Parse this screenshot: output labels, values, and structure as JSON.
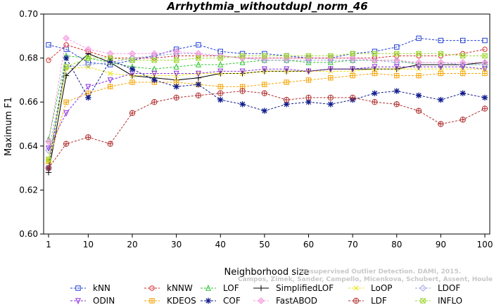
{
  "chart_data": {
    "type": "line",
    "title": "Arrhythmia_withoutdupl_norm_46",
    "xlabel": "Neighborhood size",
    "ylabel": "Maximum F1",
    "xlim": [
      1,
      100
    ],
    "ylim": [
      0.6,
      0.7
    ],
    "x_ticks": [
      1,
      10,
      20,
      30,
      40,
      50,
      60,
      70,
      80,
      90,
      100
    ],
    "y_ticks": [
      0.6,
      0.62,
      0.64,
      0.66,
      0.68,
      0.7
    ],
    "x_tick_labels": [
      "1",
      "10",
      "20",
      "30",
      "40",
      "50",
      "60",
      "70",
      "80",
      "90",
      "100"
    ],
    "y_tick_labels": [
      "0.60",
      "0.62",
      "0.64",
      "0.66",
      "0.68",
      "0.70"
    ],
    "legend_placement": "bottom",
    "watermark_lines": [
      "Campos, Zimek, Sander, Campello, Micenkova, Schubert, Assent, Houle",
      "Unsupervised Outlier Detection. DAMI, 2015."
    ],
    "x": [
      1,
      5,
      10,
      15,
      20,
      25,
      30,
      35,
      40,
      45,
      50,
      55,
      60,
      65,
      70,
      75,
      80,
      85,
      90,
      95,
      100
    ],
    "series": [
      {
        "name": "kNN",
        "color": "#1f3fd6",
        "marker": "square",
        "values": [
          0.686,
          0.684,
          0.678,
          0.677,
          0.679,
          0.681,
          0.684,
          0.686,
          0.683,
          0.682,
          0.682,
          0.681,
          0.68,
          0.68,
          0.682,
          0.683,
          0.685,
          0.689,
          0.688,
          0.688,
          0.688
        ]
      },
      {
        "name": "kNNW",
        "color": "#d62a2a",
        "marker": "circle",
        "values": [
          0.679,
          0.686,
          0.683,
          0.68,
          0.68,
          0.68,
          0.681,
          0.681,
          0.681,
          0.68,
          0.68,
          0.68,
          0.68,
          0.68,
          0.68,
          0.68,
          0.681,
          0.681,
          0.681,
          0.682,
          0.684
        ]
      },
      {
        "name": "LOF",
        "color": "#2ec42e",
        "marker": "triangle-up",
        "values": [
          0.643,
          0.681,
          0.68,
          0.678,
          0.676,
          0.675,
          0.676,
          0.677,
          0.677,
          0.678,
          0.679,
          0.679,
          0.678,
          0.678,
          0.679,
          0.679,
          0.679,
          0.677,
          0.677,
          0.677,
          0.677
        ]
      },
      {
        "name": "SimplifiedLOF",
        "color": "#000000",
        "marker": "plus",
        "values": [
          0.628,
          0.672,
          0.682,
          0.678,
          0.672,
          0.671,
          0.67,
          0.671,
          0.673,
          0.673,
          0.674,
          0.674,
          0.674,
          0.675,
          0.675,
          0.675,
          0.675,
          0.677,
          0.677,
          0.677,
          0.678
        ]
      },
      {
        "name": "LoOP",
        "color": "#e8e000",
        "marker": "x",
        "values": [
          0.633,
          0.675,
          0.676,
          0.673,
          0.672,
          0.672,
          0.672,
          0.673,
          0.673,
          0.673,
          0.674,
          0.674,
          0.674,
          0.674,
          0.674,
          0.675,
          0.675,
          0.675,
          0.675,
          0.675,
          0.675
        ]
      },
      {
        "name": "LDOF",
        "color": "#9aa0e0",
        "marker": "diamond",
        "values": [
          0.638,
          0.676,
          0.677,
          0.678,
          0.68,
          0.681,
          0.682,
          0.682,
          0.681,
          0.68,
          0.679,
          0.679,
          0.679,
          0.679,
          0.679,
          0.679,
          0.678,
          0.678,
          0.678,
          0.677,
          0.677
        ]
      },
      {
        "name": "ODIN",
        "color": "#8a2be2",
        "marker": "triangle-down",
        "values": [
          0.639,
          0.655,
          0.667,
          0.67,
          0.673,
          0.673,
          0.673,
          0.673,
          0.674,
          0.674,
          0.675,
          0.675,
          0.674,
          0.675,
          0.675,
          0.676,
          0.676,
          0.676,
          0.676,
          0.676,
          0.675
        ]
      },
      {
        "name": "KDEOS",
        "color": "#f5a300",
        "marker": "square-cross",
        "values": [
          0.633,
          0.66,
          0.664,
          0.667,
          0.669,
          0.669,
          0.669,
          0.668,
          0.667,
          0.667,
          0.668,
          0.669,
          0.67,
          0.671,
          0.672,
          0.673,
          0.672,
          0.672,
          0.673,
          0.673,
          0.673
        ]
      },
      {
        "name": "COF",
        "color": "#101c8c",
        "marker": "star",
        "values": [
          0.63,
          0.68,
          0.662,
          0.679,
          0.675,
          0.67,
          0.667,
          0.668,
          0.661,
          0.659,
          0.656,
          0.659,
          0.66,
          0.659,
          0.661,
          0.664,
          0.665,
          0.663,
          0.661,
          0.664,
          0.662
        ]
      },
      {
        "name": "FastABOD",
        "color": "#f59ae0",
        "marker": "diamond-filled",
        "values": [
          0.642,
          0.689,
          0.684,
          0.682,
          0.682,
          0.682,
          0.683,
          0.682,
          0.681,
          0.68,
          0.68,
          0.68,
          0.68,
          0.68,
          0.68,
          0.679,
          0.679,
          0.678,
          0.678,
          0.678,
          0.678
        ]
      },
      {
        "name": "LDF",
        "color": "#b03030",
        "marker": "circle-plus",
        "values": [
          0.63,
          0.641,
          0.644,
          0.641,
          0.655,
          0.66,
          0.662,
          0.663,
          0.664,
          0.665,
          0.664,
          0.661,
          0.662,
          0.662,
          0.662,
          0.66,
          0.659,
          0.656,
          0.65,
          0.652,
          0.657
        ]
      },
      {
        "name": "INFLO",
        "color": "#9bd62a",
        "marker": "square-x",
        "values": [
          0.634,
          0.676,
          0.68,
          0.68,
          0.679,
          0.679,
          0.679,
          0.68,
          0.68,
          0.681,
          0.681,
          0.681,
          0.681,
          0.681,
          0.682,
          0.682,
          0.682,
          0.682,
          0.682,
          0.681,
          0.681
        ]
      }
    ]
  }
}
